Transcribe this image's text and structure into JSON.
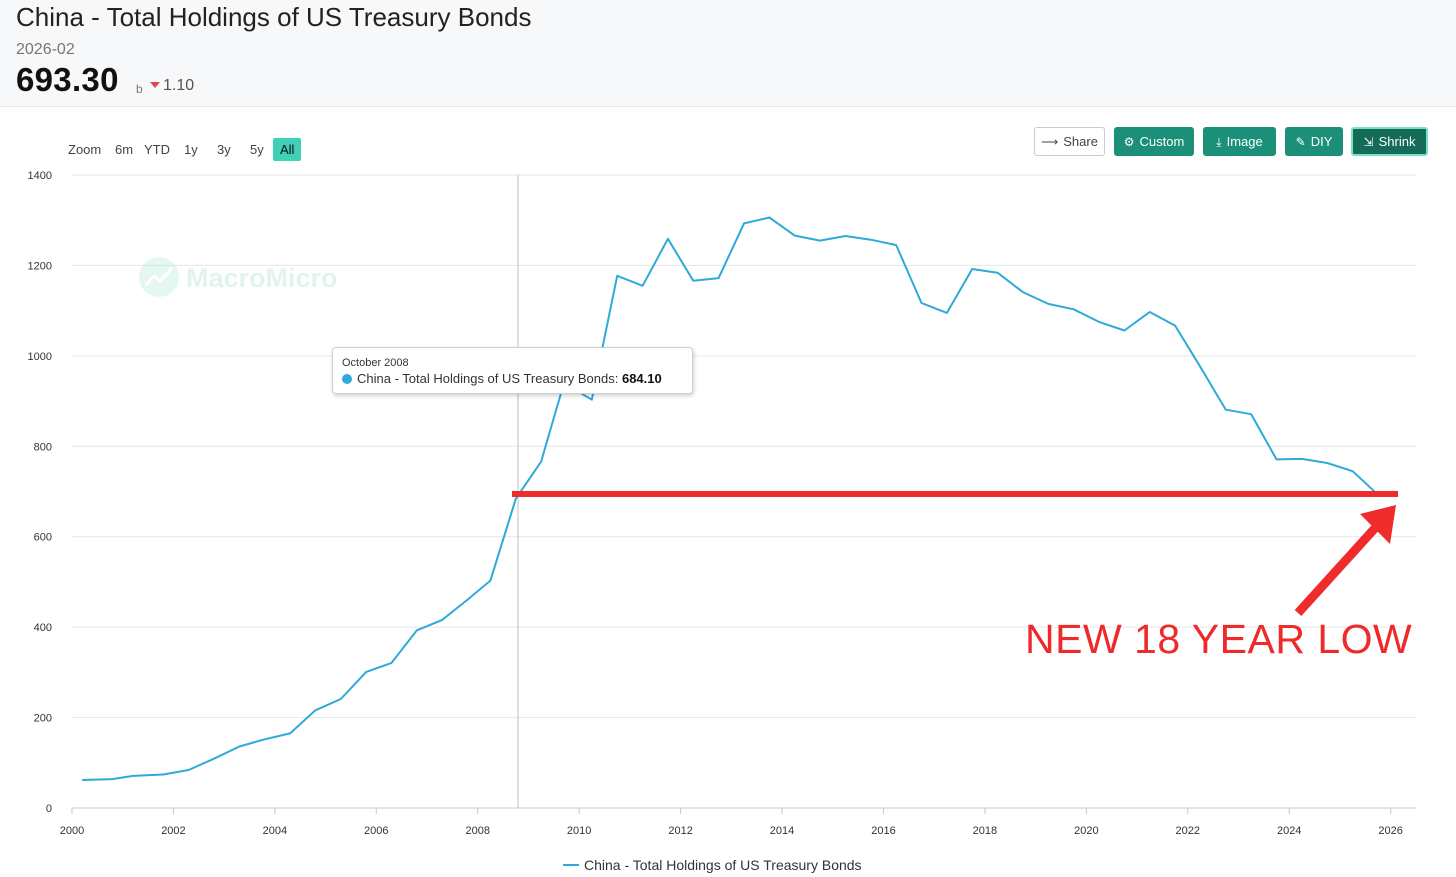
{
  "header": {
    "title": "China - Total Holdings of US Treasury Bonds",
    "date": "2026-02",
    "value": "693.30",
    "unit": "b",
    "change": "1.10",
    "change_direction": "down",
    "change_color": "#e8434c"
  },
  "zoom": {
    "label": "Zoom",
    "options": [
      "6m",
      "YTD",
      "1y",
      "3y",
      "5y",
      "All"
    ],
    "active": "All"
  },
  "toolbar": {
    "share": "Share",
    "custom": "Custom",
    "image": "Image",
    "diy": "DIY",
    "shrink": "Shrink"
  },
  "watermark": "MacroMicro",
  "tooltip": {
    "date": "October 2008",
    "series": "China - Total Holdings of US Treasury Bonds:",
    "value": "684.10"
  },
  "annotation": {
    "text": "NEW 18 YEAR LOW",
    "color": "#ee2a2a",
    "reference_value": 693.3
  },
  "legend": {
    "label": "China - Total Holdings of US Treasury Bonds"
  },
  "chart_data": {
    "type": "line",
    "title": "China - Total Holdings of US Treasury Bonds",
    "xlabel": "",
    "ylabel": "",
    "xlim": [
      2000,
      2026.5
    ],
    "ylim": [
      0,
      1400
    ],
    "xticks": [
      2000,
      2002,
      2004,
      2006,
      2008,
      2010,
      2012,
      2014,
      2016,
      2018,
      2020,
      2022,
      2024,
      2026
    ],
    "yticks": [
      0,
      200,
      400,
      600,
      800,
      1000,
      1200,
      1400
    ],
    "grid": true,
    "legend_position": "bottom",
    "series_color": "#2eaad9",
    "series": [
      {
        "name": "China - Total Holdings of US Treasury Bonds",
        "x": [
          2000.2,
          2000.8,
          2001.2,
          2001.8,
          2002.3,
          2002.8,
          2003.3,
          2003.8,
          2004.3,
          2004.8,
          2005.3,
          2005.8,
          2006.3,
          2006.8,
          2007.3,
          2007.8,
          2008.25,
          2008.75,
          2009.25,
          2009.7,
          2010.25,
          2010.75,
          2011.25,
          2011.75,
          2012.25,
          2012.75,
          2013.25,
          2013.75,
          2014.25,
          2014.75,
          2015.25,
          2015.75,
          2016.25,
          2016.75,
          2017.25,
          2017.75,
          2018.25,
          2018.75,
          2019.25,
          2019.75,
          2020.25,
          2020.75,
          2021.25,
          2021.75,
          2022.25,
          2022.75,
          2023.25,
          2023.75,
          2024.25,
          2024.75,
          2025.25,
          2025.75,
          2026.1
        ],
        "y": [
          62,
          64,
          71,
          74,
          84,
          109,
          136,
          152,
          165,
          216,
          241,
          301,
          321,
          393,
          416,
          461,
          503,
          684,
          766,
          940,
          903,
          1177,
          1155,
          1259,
          1166,
          1172,
          1293,
          1306,
          1266,
          1255,
          1265,
          1257,
          1245,
          1117,
          1095,
          1192,
          1184,
          1141,
          1115,
          1103,
          1075,
          1056,
          1097,
          1067,
          975,
          881,
          871,
          771,
          772,
          763,
          745,
          693,
          693.3
        ]
      }
    ]
  }
}
